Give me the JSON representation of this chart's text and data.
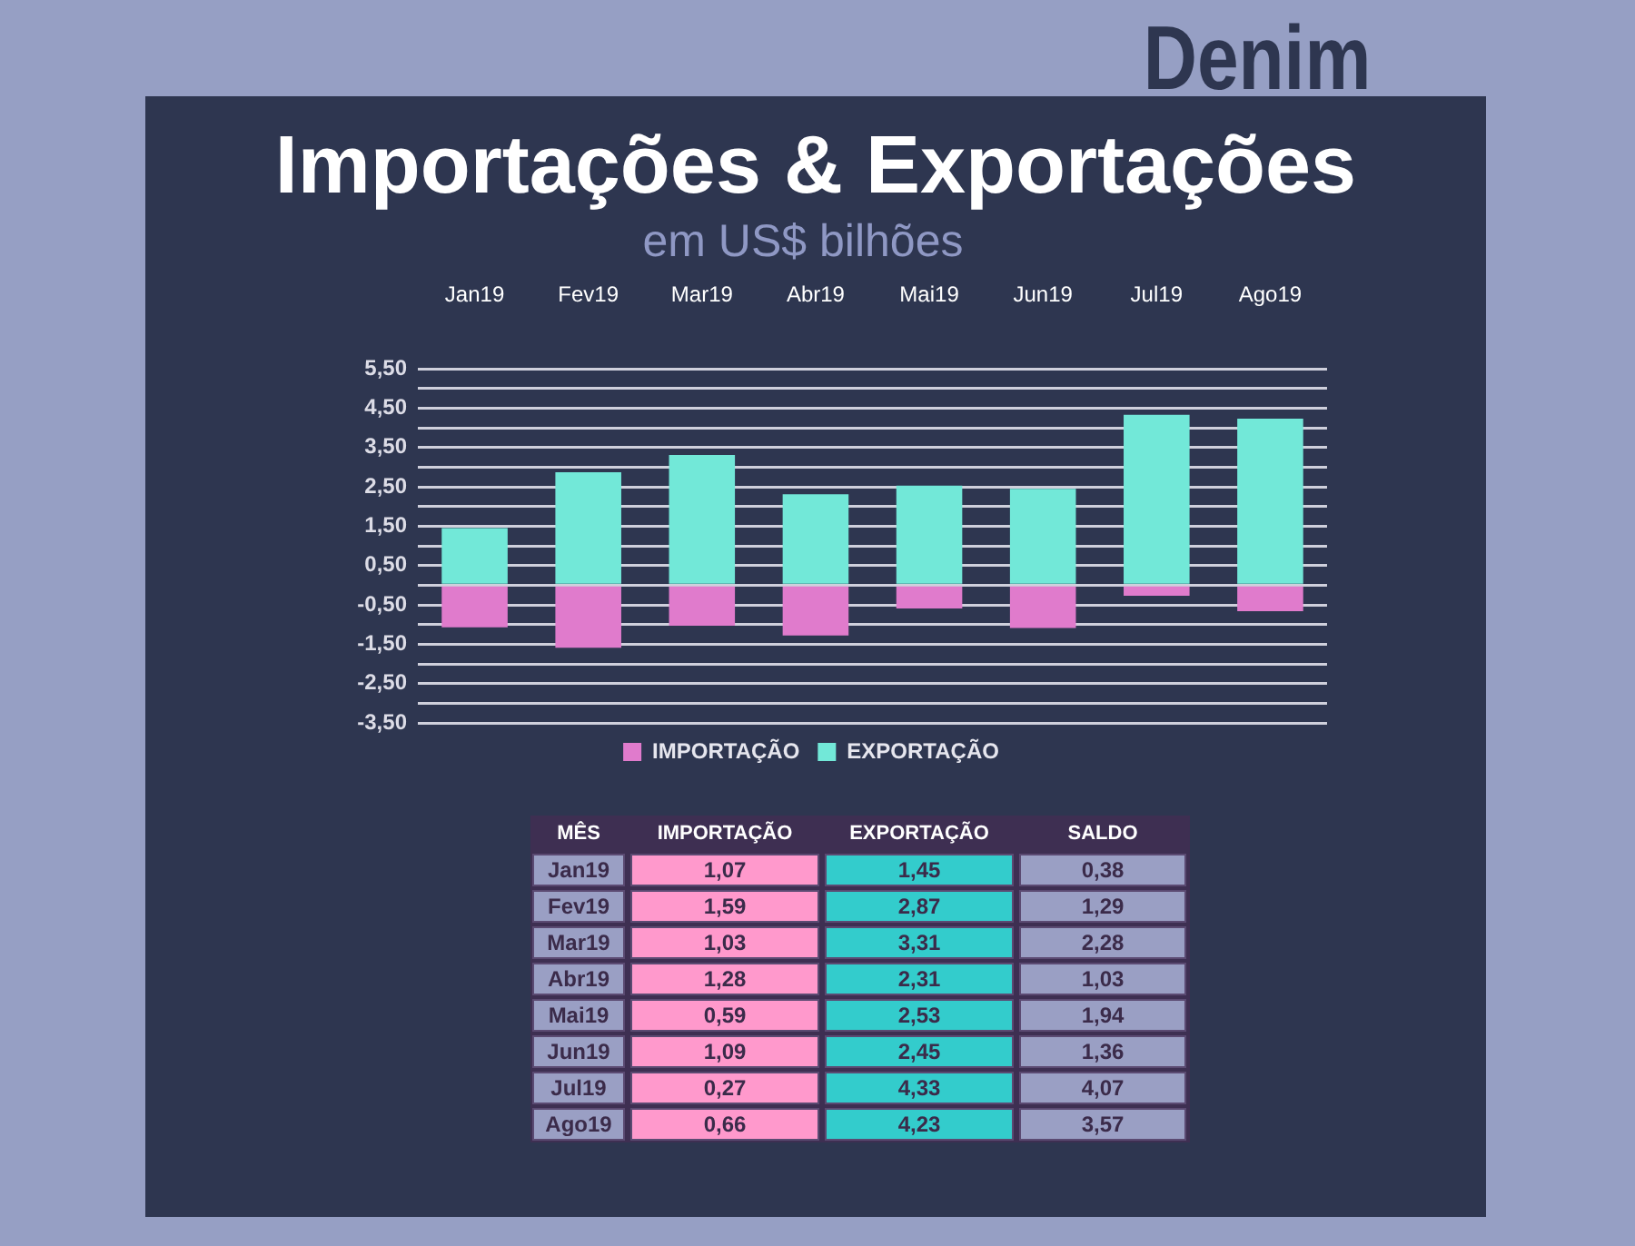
{
  "chart_data": [
    {
      "type": "bar",
      "title": "Importações & Exportações",
      "subtitle": "em US$ bilhões",
      "annotations": [
        "Denim"
      ],
      "categories": [
        "Jan19",
        "Fev19",
        "Mar19",
        "Abr19",
        "Mai19",
        "Jun19",
        "Jul19",
        "Ago19"
      ],
      "series": [
        {
          "name": "IMPORTAÇÃO",
          "color": "#e07bcc",
          "values": [
            -1.07,
            -1.59,
            -1.03,
            -1.28,
            -0.59,
            -1.09,
            -0.27,
            -0.66
          ]
        },
        {
          "name": "EXPORTAÇÃO",
          "color": "#72e8d8",
          "values": [
            1.45,
            2.87,
            3.31,
            2.31,
            2.53,
            2.45,
            4.33,
            4.23
          ]
        }
      ],
      "stacked": true,
      "ylim": [
        -3.5,
        5.5
      ],
      "yticks": [
        {
          "value": -3.5,
          "label": "-3,50"
        },
        {
          "value": -3,
          "label": null
        },
        {
          "value": -2.5,
          "label": "-2,50"
        },
        {
          "value": -2,
          "label": null
        },
        {
          "value": -1.5,
          "label": "-1,50"
        },
        {
          "value": -1,
          "label": null
        },
        {
          "value": -0.5,
          "label": "-0,50"
        },
        {
          "value": 0,
          "label": null
        },
        {
          "value": 0.5,
          "label": "0,50"
        },
        {
          "value": 1,
          "label": null
        },
        {
          "value": 1.5,
          "label": "1,50"
        },
        {
          "value": 2,
          "label": null
        },
        {
          "value": 2.5,
          "label": "2,50"
        },
        {
          "value": 3,
          "label": null
        },
        {
          "value": 3.5,
          "label": "3,50"
        },
        {
          "value": 4,
          "label": null
        },
        {
          "value": 4.5,
          "label": "4,50"
        },
        {
          "value": 5,
          "label": null
        },
        {
          "value": 5.5,
          "label": "5,50"
        }
      ],
      "grid": "y",
      "legend": "bottom"
    },
    {
      "type": "other",
      "ylabel": "MÊS",
      "categories": [
        "Jan19",
        "Fev19",
        "Mar19",
        "Abr19",
        "Mai19",
        "Jun19",
        "Jul19",
        "Ago19"
      ],
      "series": [
        {
          "name": "IMPORTAÇÃO",
          "color": "#ff99cc",
          "values": [
            1.07,
            1.59,
            1.03,
            1.28,
            0.59,
            1.09,
            0.27,
            0.66
          ],
          "value_labels": [
            "1,07",
            "1,59",
            "1,03",
            "1,28",
            "0,59",
            "1,09",
            "0,27",
            "0,66"
          ]
        },
        {
          "name": "EXPORTAÇÃO",
          "color": "#33cccc",
          "values": [
            1.45,
            2.87,
            3.31,
            2.31,
            2.53,
            2.45,
            4.33,
            4.23
          ],
          "value_labels": [
            "1,45",
            "2,87",
            "3,31",
            "2,31",
            "2,53",
            "2,45",
            "4,33",
            "4,23"
          ]
        },
        {
          "name": "SALDO",
          "color": "#9a9fc4",
          "values": [
            0.38,
            1.29,
            2.28,
            1.03,
            1.94,
            1.36,
            4.07,
            3.57
          ],
          "value_labels": [
            "0,38",
            "1,29",
            "2,28",
            "1,03",
            "1,94",
            "1,36",
            "4,07",
            "3,57"
          ]
        }
      ]
    }
  ]
}
